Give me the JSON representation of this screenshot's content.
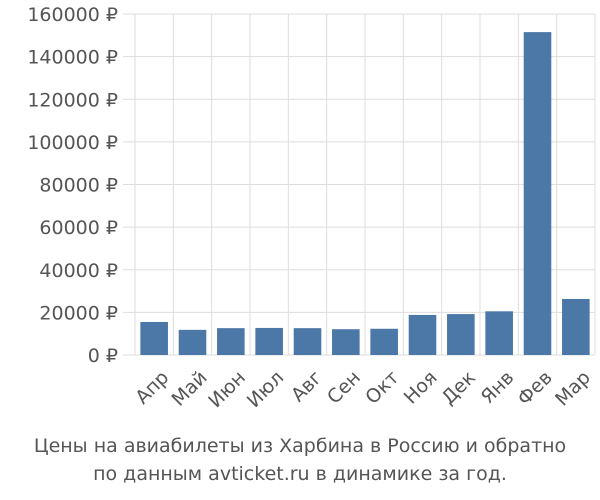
{
  "chart_data": {
    "type": "bar",
    "categories": [
      "Апр",
      "Май",
      "Июн",
      "Июл",
      "Авг",
      "Сен",
      "Окт",
      "Ноя",
      "Дек",
      "Янв",
      "Фев",
      "Мар"
    ],
    "values": [
      15500,
      11800,
      12600,
      12700,
      12600,
      12100,
      12300,
      18800,
      19200,
      20500,
      151500,
      26300
    ],
    "yticks": [
      "0 ₽",
      "20000 ₽",
      "40000 ₽",
      "60000 ₽",
      "80000 ₽",
      "100000 ₽",
      "120000 ₽",
      "140000 ₽",
      "160000 ₽"
    ],
    "ylim": [
      0,
      160000
    ],
    "grid": true,
    "bar_color": "#4c78a8",
    "grid_color": "#dddddd"
  },
  "caption": {
    "line1": "Цены на авиабилеты из Харбина в Россию и обратно",
    "line2": "по данным avticket.ru в динамике за год."
  }
}
